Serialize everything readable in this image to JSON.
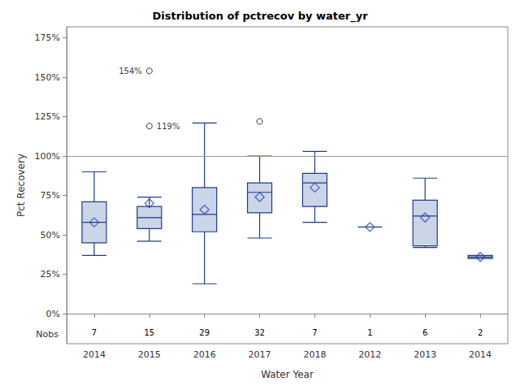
{
  "chart_data": {
    "type": "boxplot",
    "title": "Distribution of pctrecov by water_yr",
    "x_label": "Water Year",
    "y_label": "Pct Recovery",
    "categories": [
      "2014",
      "2015",
      "2016",
      "2017",
      "2018",
      "2012",
      "2013",
      "2014"
    ],
    "values": [
      [
        37,
        45,
        58,
        71,
        90
      ],
      [
        46,
        54,
        61,
        68,
        74
      ],
      [
        19,
        52,
        63,
        80,
        121
      ],
      [
        48,
        64,
        77,
        83,
        100
      ],
      [
        58,
        68,
        83,
        89,
        103
      ],
      [
        55,
        55,
        55,
        55,
        55
      ],
      [
        42,
        43,
        62,
        72,
        86
      ],
      [
        35,
        35,
        36,
        37,
        37
      ]
    ],
    "means": [
      58,
      70,
      66,
      74,
      80,
      55,
      61,
      36
    ],
    "nobs": [
      7,
      15,
      29,
      32,
      7,
      1,
      6,
      2
    ],
    "nobs_label": "Nobs",
    "outliers": [
      {
        "index": 1,
        "value": 154,
        "label": "154%"
      },
      {
        "index": 1,
        "value": 119,
        "label": "119%"
      },
      {
        "index": 3,
        "value": 122
      }
    ],
    "reference_line": 100,
    "color": "#cbd5e8",
    "ylim": [
      -19,
      182
    ],
    "yticks": [
      {
        "value": 0,
        "label": "0%"
      },
      {
        "value": 25,
        "label": "25%"
      },
      {
        "value": 50,
        "label": "50%"
      },
      {
        "value": 75,
        "label": "75%"
      },
      {
        "value": 100,
        "label": "100%"
      },
      {
        "value": 125,
        "label": "125%"
      },
      {
        "value": 150,
        "label": "150%"
      },
      {
        "value": 175,
        "label": "175%"
      }
    ],
    "grid": false
  }
}
